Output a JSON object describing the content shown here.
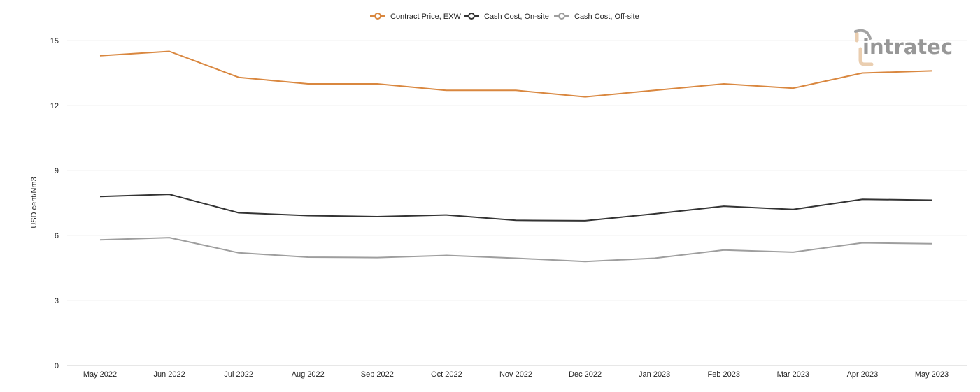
{
  "chart_data": {
    "type": "line",
    "categories": [
      "May 2022",
      "Jun 2022",
      "Jul 2022",
      "Aug 2022",
      "Sep 2022",
      "Oct 2022",
      "Nov 2022",
      "Dec 2022",
      "Jan 2023",
      "Feb 2023",
      "Mar 2023",
      "Apr 2023",
      "May 2023"
    ],
    "series": [
      {
        "name": "Contract Price, EXW",
        "color": "#d9873f",
        "values": [
          14.3,
          14.5,
          13.3,
          13.0,
          13.0,
          12.7,
          12.7,
          12.4,
          12.7,
          13.0,
          12.8,
          13.5,
          13.6
        ]
      },
      {
        "name": "Cash Cost, On-site",
        "color": "#333333",
        "values": [
          7.8,
          7.9,
          7.05,
          6.92,
          6.87,
          6.95,
          6.7,
          6.68,
          7.0,
          7.35,
          7.2,
          7.67,
          7.63
        ]
      },
      {
        "name": "Cash Cost, Off-site",
        "color": "#9e9e9e",
        "values": [
          5.8,
          5.9,
          5.2,
          5.0,
          4.98,
          5.08,
          4.95,
          4.8,
          4.95,
          5.33,
          5.23,
          5.66,
          5.62
        ]
      }
    ],
    "ylabel": "USD cent/Nm3",
    "xlabel": "",
    "ylim": [
      0,
      15
    ],
    "yticks": [
      0,
      3,
      6,
      9,
      12,
      15
    ],
    "grid": true,
    "legend_position": "top-center"
  },
  "watermark": {
    "text": "intratec"
  }
}
